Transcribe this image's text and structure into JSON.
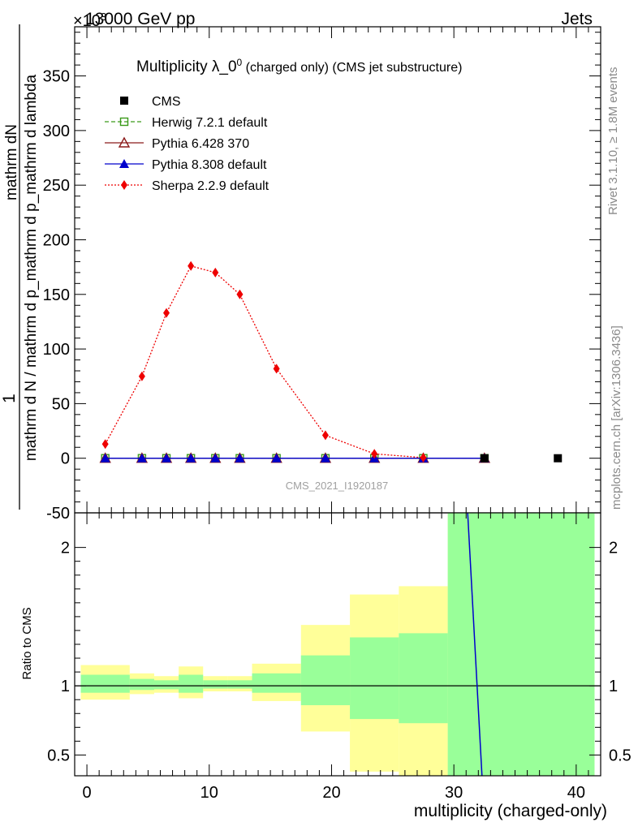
{
  "header": {
    "energy_label": "13000 GeV pp",
    "process_label": "Jets",
    "exponent_label": "×10^3"
  },
  "side_labels": {
    "rivet": "Rivet 3.1.10, ≥ 1.8M events",
    "mcplots": "mcplots.cern.ch [arXiv:1306.3436]"
  },
  "chart_data": [
    {
      "type": "line",
      "title": "Multiplicity λ_0^0 (charged only) (CMS jet substructure)",
      "title_main": "Multiplicity λ_0",
      "title_sup": "0",
      "title_suffix": " (charged only) (CMS jet substructure)",
      "ylabel_top": "1",
      "ylabel_numerator": "mathrm dN",
      "ylabel_denominator": "mathrm d N / mathrm d p_mathrm d p_mathrm d lambda",
      "watermark": "CMS_2021_I1920187",
      "xlim": [
        -1,
        42
      ],
      "ylim": [
        -50,
        395
      ],
      "yticks": [
        -50,
        0,
        50,
        100,
        150,
        200,
        250,
        300,
        350
      ],
      "legend_position": "top-left",
      "series": [
        {
          "name": "CMS",
          "color": "#000000",
          "marker": "square",
          "line": "none",
          "x": [
            32.5,
            38.5
          ],
          "y": [
            0,
            0
          ]
        },
        {
          "name": "Herwig 7.2.1 default",
          "color": "#3a9a1a",
          "marker": "open-square",
          "line": "dashed",
          "x": [
            1.5,
            4.5,
            6.5,
            8.5,
            10.5,
            12.5,
            15.5,
            19.5,
            23.5,
            27.5,
            32.5
          ],
          "y": [
            0,
            0,
            0,
            0,
            0,
            0,
            0,
            0,
            0,
            0,
            0
          ]
        },
        {
          "name": "Pythia 6.428 370",
          "color": "#8b1a1a",
          "marker": "open-triangle",
          "line": "solid",
          "x": [
            1.5,
            4.5,
            6.5,
            8.5,
            10.5,
            12.5,
            15.5,
            19.5,
            23.5,
            27.5,
            32.5
          ],
          "y": [
            0,
            0,
            0,
            0,
            0,
            0,
            0,
            0,
            0,
            0,
            0
          ]
        },
        {
          "name": "Pythia 8.308 default",
          "color": "#0000cc",
          "marker": "triangle",
          "line": "solid",
          "x": [
            1.5,
            4.5,
            6.5,
            8.5,
            10.5,
            12.5,
            15.5,
            19.5,
            23.5,
            27.5,
            32.5
          ],
          "y": [
            0,
            0,
            0,
            0,
            0,
            0,
            0,
            0,
            0,
            0,
            0
          ]
        },
        {
          "name": "Sherpa 2.2.9 default",
          "color": "#ee0000",
          "marker": "diamond",
          "line": "dotted",
          "x": [
            1.5,
            4.5,
            6.5,
            8.5,
            10.5,
            12.5,
            15.5,
            19.5,
            23.5,
            27.5
          ],
          "y": [
            13,
            75,
            133,
            176,
            170,
            150,
            82,
            21,
            4,
            0.5
          ]
        }
      ]
    },
    {
      "type": "line",
      "ylabel": "Ratio to CMS",
      "xlabel": "multiplicity (charged-only)",
      "xlim": [
        -1,
        42
      ],
      "ylim": [
        0.35,
        2.25
      ],
      "yticks": [
        0.5,
        1,
        2
      ],
      "ytick_labels": [
        "0.5",
        "1",
        "2"
      ],
      "xticks": [
        0,
        10,
        20,
        30,
        40
      ],
      "xtick_labels": [
        "0",
        "10",
        "20",
        "30",
        "40"
      ],
      "bands": [
        {
          "x0": -0.5,
          "x1": 3.5,
          "yellow": [
            0.9,
            1.15
          ],
          "green": [
            0.95,
            1.08
          ]
        },
        {
          "x0": 3.5,
          "x1": 5.5,
          "yellow": [
            0.94,
            1.09
          ],
          "green": [
            0.97,
            1.05
          ]
        },
        {
          "x0": 5.5,
          "x1": 7.5,
          "yellow": [
            0.95,
            1.07
          ],
          "green": [
            0.975,
            1.04
          ]
        },
        {
          "x0": 7.5,
          "x1": 9.5,
          "yellow": [
            0.91,
            1.14
          ],
          "green": [
            0.95,
            1.08
          ]
        },
        {
          "x0": 9.5,
          "x1": 11.5,
          "yellow": [
            0.96,
            1.07
          ],
          "green": [
            0.98,
            1.04
          ]
        },
        {
          "x0": 11.5,
          "x1": 13.5,
          "yellow": [
            0.96,
            1.07
          ],
          "green": [
            0.98,
            1.04
          ]
        },
        {
          "x0": 13.5,
          "x1": 17.5,
          "yellow": [
            0.89,
            1.16
          ],
          "green": [
            0.95,
            1.09
          ]
        },
        {
          "x0": 17.5,
          "x1": 21.5,
          "yellow": [
            0.67,
            1.44
          ],
          "green": [
            0.86,
            1.22
          ]
        },
        {
          "x0": 21.5,
          "x1": 25.5,
          "yellow": [
            0.38,
            1.66
          ],
          "green": [
            0.76,
            1.35
          ]
        },
        {
          "x0": 25.5,
          "x1": 29.5,
          "yellow": [
            0.3,
            1.72
          ],
          "green": [
            0.73,
            1.38
          ]
        },
        {
          "x0": 29.5,
          "x1": 41.5,
          "yellow": [
            0.3,
            2.3
          ],
          "green": [
            0.3,
            2.3
          ]
        }
      ],
      "series": [
        {
          "name": "Pythia 8.308 default",
          "color": "#0000cc",
          "line": "solid",
          "x": [
            31.1,
            32.3
          ],
          "y": [
            2.3,
            0.35
          ]
        }
      ]
    }
  ]
}
